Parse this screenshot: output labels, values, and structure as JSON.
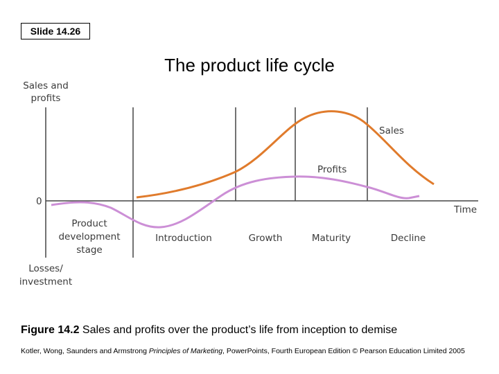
{
  "slide_label": "Slide 14.26",
  "title": "The product life cycle",
  "diagram": {
    "y_axis_top_label": [
      "Sales and",
      "profits"
    ],
    "y_axis_bottom_label": [
      "Losses/",
      "investment"
    ],
    "zero_label": "0",
    "x_axis_label": "Time",
    "stages": {
      "development": [
        "Product",
        "development",
        "stage"
      ],
      "introduction": "Introduction",
      "growth": "Growth",
      "maturity": "Maturity",
      "decline": "Decline"
    },
    "sales_curve_label": "Sales",
    "profits_curve_label": "Profits",
    "colors": {
      "sales": "#e07b2c",
      "profits": "#cc8fd6",
      "axis": "#444444"
    }
  },
  "caption": {
    "figure_label": "Figure 14.2",
    "text": " Sales and profits over the product’s life from inception to demise"
  },
  "footer": {
    "authors": "Kotler, Wong, Saunders and Armstrong ",
    "book": "Principles of Marketing",
    "rest": ", PowerPoints, Fourth European Edition © Pearson Education Limited 2005"
  }
}
